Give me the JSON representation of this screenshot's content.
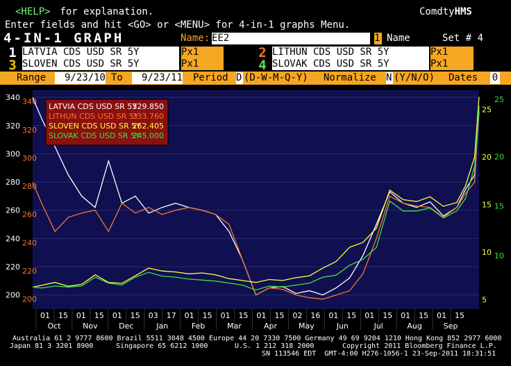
{
  "header": {
    "help_key": "<HELP>",
    "help_text": " for explanation.",
    "brand_normal": "Comdty",
    "brand_bold": "HMS",
    "line2": "Enter fields and hit <GO> or <MENU> for 4-in-1 graphs Menu.",
    "title": "4-IN-1 GRAPH",
    "name_label": "Name:",
    "name_value": "EE2",
    "name_index": "1",
    "name_word": "Name",
    "set_label": "Set # 4"
  },
  "securities": [
    {
      "num": "1",
      "name": "LATVIA CDS USD SR 5Y",
      "field": "Px1",
      "num_color": "#ffffff"
    },
    {
      "num": "2",
      "name": "LITHUN CDS USD SR 5Y",
      "field": "Px1",
      "num_color": "#f07830"
    },
    {
      "num": "3",
      "name": "SLOVEN CDS USD SR 5Y",
      "field": "Px1",
      "num_color": "#f5c400"
    },
    {
      "num": "4",
      "name": "SLOVAK CDS USD SR 5Y",
      "field": "Px1",
      "num_color": "#5ee05e"
    }
  ],
  "range_bar": {
    "range_label": "Range",
    "start": "9/23/10",
    "to_label": "To",
    "end": "9/23/11",
    "period_label": "Period",
    "period_value": "D",
    "period_options": "(D-W-M-Q-Y)",
    "normalize_label": "Normalize",
    "normalize_value": "N",
    "normalize_options": "(Y/N/O)",
    "dates_label": "Dates",
    "dates_value": "0"
  },
  "legend": [
    {
      "label": "LATVIA CDS USD SR 5Y",
      "value": "329.850",
      "color": "#ffffff"
    },
    {
      "label": "LITHUN CDS USD SR 5Y",
      "value": "333.760",
      "color": "#f07830"
    },
    {
      "label": "SLOVEN CDS USD SR 5Y",
      "value": "262.405",
      "color": "#ffff40"
    },
    {
      "label": "SLOVAK CDS USD SR 5Y",
      "value": "245.000",
      "color": "#40e040"
    }
  ],
  "colors": {
    "plot_bg": "#101050",
    "legend_bg": "#8b1010",
    "latvia": "#ffffff",
    "lithun": "#f07830",
    "sloven": "#ffff40",
    "slovak": "#40e040"
  },
  "footer": {
    "line1": "Australia 61 2 9777 8600 Brazil 5511 3048 4500 Europe 44 20 7330 7500 Germany 49 69 9204 1210 Hong Kong 852 2977 6000",
    "line2a": "Japan 81 3 3201 8900",
    "line2b": "Singapore 65 6212 1000",
    "line2c": "U.S. 1 212 318 2000",
    "line2d": "Copyright 2011 Bloomberg Finance L.P.",
    "line3": "SN 113546 EDT  GMT-4:00 H276-1056-1 23-Sep-2011 18:31:51"
  },
  "chart_data": {
    "type": "line",
    "x_day_ticks": [
      "01",
      "15",
      "01",
      "15",
      "01",
      "15",
      "03",
      "17",
      "01",
      "15",
      "01",
      "15",
      "01",
      "15",
      "02",
      "16",
      "01",
      "15",
      "01",
      "15",
      "01",
      "15",
      "01",
      "15"
    ],
    "x_month_labels": [
      "Oct",
      "Nov",
      "Dec",
      "Jan",
      "Feb",
      "Mar",
      "Apr",
      "May",
      "Jun",
      "Jul",
      "Aug",
      "Sep"
    ],
    "axes": {
      "latvia_ticks": [
        200,
        220,
        240,
        260,
        280,
        300,
        320,
        340
      ],
      "lithun_ticks": [
        200,
        220,
        240,
        260,
        280,
        300,
        320,
        340
      ],
      "sloven_ticks": [
        5,
        10,
        15,
        20,
        25
      ],
      "slovak_ticks": [
        10,
        15,
        20
      ]
    },
    "series": [
      {
        "name": "LATVIA CDS USD SR 5Y",
        "x": [
          0,
          0.02,
          0.05,
          0.08,
          0.11,
          0.14,
          0.17,
          0.2,
          0.23,
          0.26,
          0.29,
          0.32,
          0.35,
          0.38,
          0.41,
          0.44,
          0.47,
          0.5,
          0.53,
          0.56,
          0.59,
          0.62,
          0.65,
          0.68,
          0.71,
          0.74,
          0.77,
          0.8,
          0.83,
          0.86,
          0.89,
          0.92,
          0.95,
          0.97,
          0.99,
          1.0
        ],
        "values": [
          340,
          325,
          305,
          285,
          270,
          262,
          295,
          265,
          270,
          258,
          262,
          265,
          262,
          260,
          257,
          245,
          225,
          200,
          205,
          206,
          201,
          203,
          200,
          205,
          212,
          228,
          250,
          273,
          265,
          262,
          266,
          256,
          262,
          275,
          285,
          330
        ]
      },
      {
        "name": "LITHUN CDS USD SR 5Y",
        "x": [
          0,
          0.02,
          0.05,
          0.08,
          0.11,
          0.14,
          0.17,
          0.2,
          0.23,
          0.26,
          0.29,
          0.32,
          0.35,
          0.38,
          0.41,
          0.44,
          0.47,
          0.5,
          0.53,
          0.56,
          0.59,
          0.62,
          0.65,
          0.68,
          0.71,
          0.74,
          0.77,
          0.8,
          0.83,
          0.86,
          0.89,
          0.92,
          0.95,
          0.97,
          0.99,
          1.0
        ],
        "values": [
          280,
          265,
          245,
          255,
          258,
          260,
          245,
          265,
          258,
          262,
          257,
          260,
          262,
          260,
          257,
          250,
          225,
          200,
          205,
          204,
          200,
          198,
          197,
          200,
          203,
          215,
          240,
          270,
          265,
          263,
          262,
          255,
          262,
          272,
          280,
          334
        ]
      },
      {
        "name": "SLOVEN CDS USD SR 5Y",
        "x": [
          0,
          0.02,
          0.05,
          0.08,
          0.11,
          0.14,
          0.17,
          0.2,
          0.23,
          0.26,
          0.29,
          0.32,
          0.35,
          0.38,
          0.41,
          0.44,
          0.47,
          0.5,
          0.53,
          0.56,
          0.59,
          0.62,
          0.65,
          0.68,
          0.71,
          0.74,
          0.77,
          0.8,
          0.83,
          0.86,
          0.89,
          0.92,
          0.95,
          0.97,
          0.99,
          1.0
        ],
        "values": [
          6.3,
          6.5,
          6.8,
          6.4,
          6.6,
          7.6,
          6.8,
          6.7,
          7.5,
          8.3,
          8.0,
          7.9,
          7.7,
          7.8,
          7.6,
          7.2,
          7.0,
          6.8,
          7.1,
          7.0,
          7.3,
          7.5,
          8.3,
          9.0,
          10.5,
          11.0,
          12.5,
          16.5,
          15.5,
          15.3,
          15.8,
          14.8,
          15.2,
          17.0,
          20.0,
          26.3
        ]
      },
      {
        "name": "SLOVAK CDS USD SR 5Y",
        "x": [
          0,
          0.02,
          0.05,
          0.08,
          0.11,
          0.14,
          0.17,
          0.2,
          0.23,
          0.26,
          0.29,
          0.32,
          0.35,
          0.38,
          0.41,
          0.44,
          0.47,
          0.5,
          0.53,
          0.56,
          0.59,
          0.62,
          0.65,
          0.68,
          0.71,
          0.74,
          0.77,
          0.8,
          0.83,
          0.86,
          0.89,
          0.92,
          0.95,
          0.97,
          0.99,
          1.0
        ],
        "values": [
          6.8,
          6.7,
          6.9,
          6.8,
          6.9,
          7.8,
          7.2,
          7.0,
          7.8,
          8.3,
          7.9,
          7.8,
          7.6,
          7.5,
          7.4,
          7.2,
          7.0,
          6.5,
          6.9,
          6.8,
          7.0,
          7.2,
          7.8,
          8.0,
          9.0,
          9.6,
          10.8,
          15.5,
          14.5,
          14.5,
          14.8,
          13.8,
          14.5,
          15.8,
          19.0,
          25.0
        ]
      }
    ]
  }
}
